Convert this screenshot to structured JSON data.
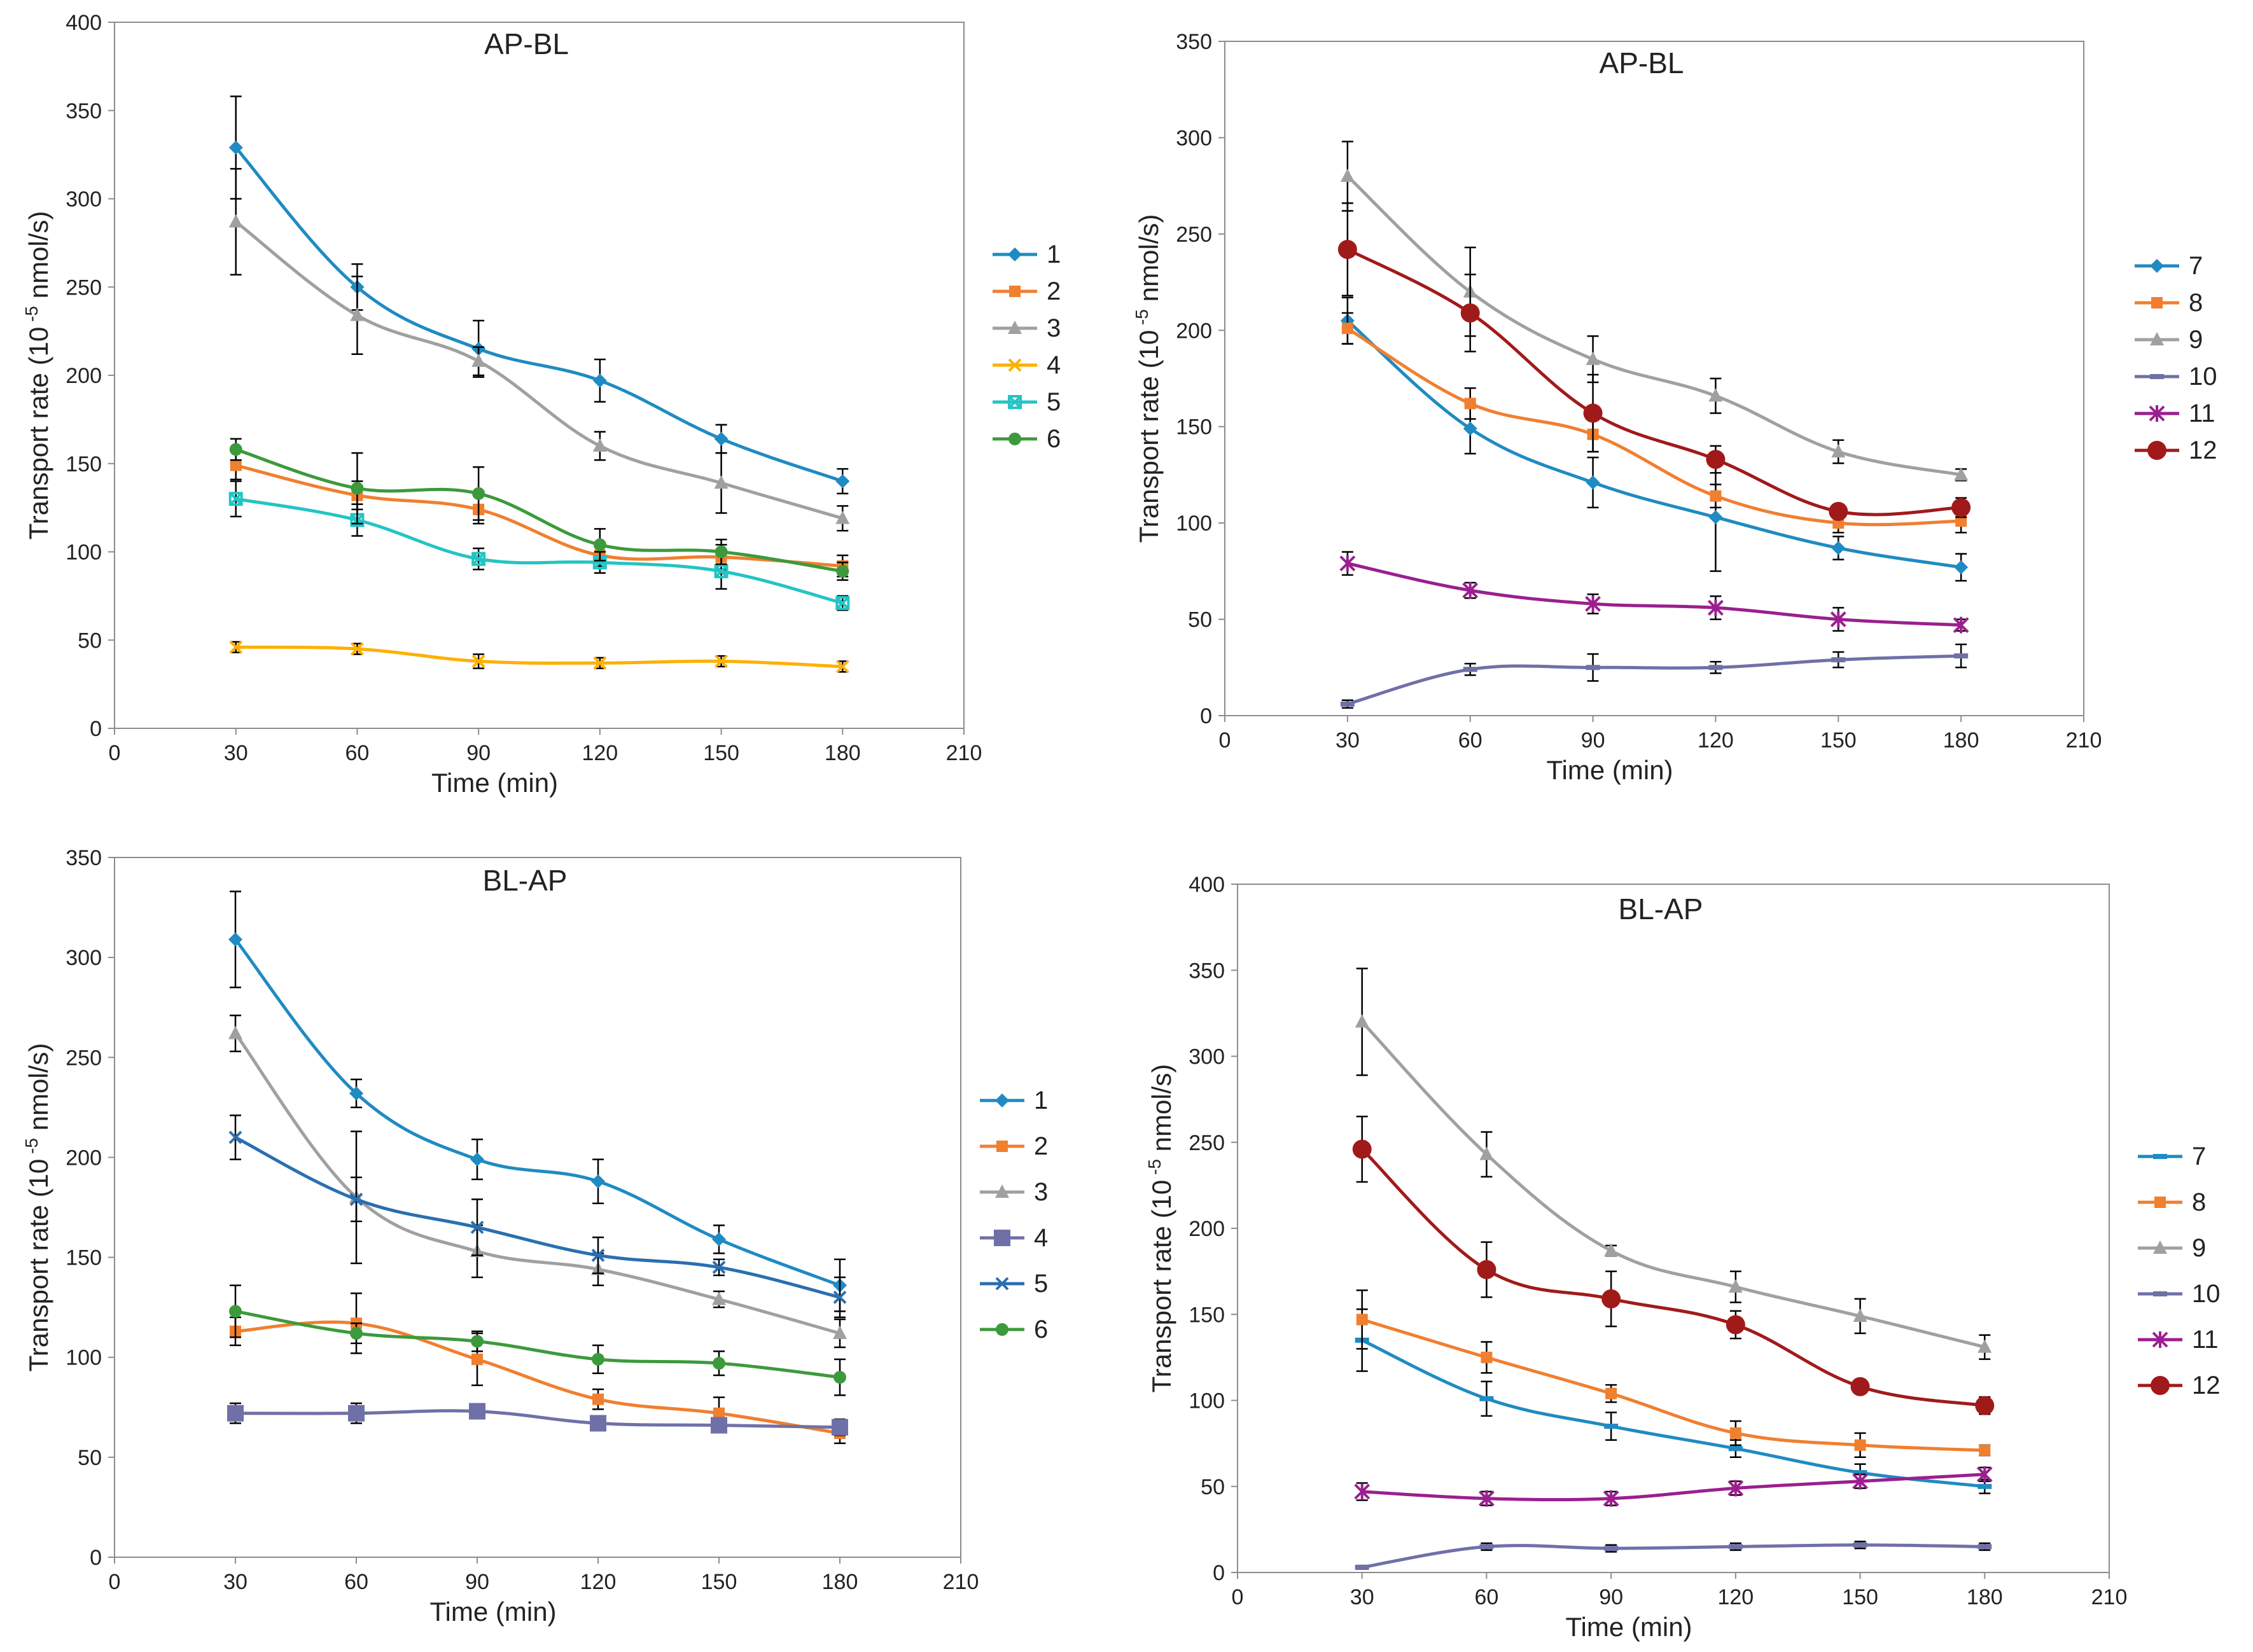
{
  "chart_data": [
    {
      "type": "line",
      "title": "AP-BL",
      "xlabel": "Time (min)",
      "ylabel_prefix": "Transport rate (10",
      "ylabel_exp": "-5",
      "ylabel_suffix": " nmol/s)",
      "xlim": [
        0,
        210
      ],
      "ylim": [
        0,
        400
      ],
      "xticks": [
        0,
        30,
        60,
        90,
        120,
        150,
        180,
        210
      ],
      "yticks": [
        0,
        50,
        100,
        150,
        200,
        250,
        300,
        350,
        400
      ],
      "x": [
        30,
        60,
        90,
        120,
        150,
        180
      ],
      "series": [
        {
          "name": "1",
          "color": "#1F8BC2",
          "marker": "diamond",
          "values": [
            329,
            250,
            215,
            197,
            164,
            140
          ],
          "errors": [
            29,
            13,
            16,
            12,
            8,
            7
          ]
        },
        {
          "name": "2",
          "color": "#F07F2F",
          "marker": "square",
          "values": [
            149,
            132,
            124,
            98,
            97,
            92
          ],
          "errors": [
            8,
            8,
            8,
            6,
            7,
            6
          ]
        },
        {
          "name": "3",
          "color": "#A0A0A0",
          "marker": "triangle",
          "values": [
            287,
            234,
            208,
            160,
            139,
            119
          ],
          "errors": [
            30,
            22,
            8,
            8,
            17,
            7
          ]
        },
        {
          "name": "4",
          "color": "#FFB000",
          "marker": "x",
          "values": [
            46,
            45,
            38,
            37,
            38,
            35
          ],
          "errors": [
            3,
            3,
            4,
            3,
            3,
            3
          ]
        },
        {
          "name": "5",
          "color": "#23C4C4",
          "marker": "squarecross",
          "values": [
            130,
            118,
            96,
            94,
            89,
            71
          ],
          "errors": [
            10,
            9,
            6,
            6,
            10,
            4
          ]
        },
        {
          "name": "6",
          "color": "#3C9A3C",
          "marker": "circle",
          "values": [
            158,
            136,
            133,
            104,
            100,
            89
          ],
          "errors": [
            6,
            20,
            15,
            9,
            7,
            5
          ]
        }
      ]
    },
    {
      "type": "line",
      "title": "AP-BL",
      "xlabel": "Time (min)",
      "ylabel_prefix": "Transport rate (10",
      "ylabel_exp": "-5",
      "ylabel_suffix": " nmol/s)",
      "xlim": [
        0,
        210
      ],
      "ylim": [
        0,
        350
      ],
      "xticks": [
        0,
        30,
        60,
        90,
        120,
        150,
        180,
        210
      ],
      "yticks": [
        0,
        50,
        100,
        150,
        200,
        250,
        300,
        350
      ],
      "x": [
        30,
        60,
        90,
        120,
        150,
        180
      ],
      "series": [
        {
          "name": "7",
          "color": "#1F8BC2",
          "marker": "diamond",
          "values": [
            205,
            149,
            121,
            103,
            87,
            77
          ],
          "errors": [
            12,
            13,
            13,
            28,
            6,
            7
          ]
        },
        {
          "name": "8",
          "color": "#F07F2F",
          "marker": "square",
          "values": [
            201,
            162,
            146,
            114,
            100,
            101
          ],
          "errors": [
            8,
            8,
            9,
            6,
            5,
            6
          ]
        },
        {
          "name": "9",
          "color": "#A0A0A0",
          "marker": "triangle",
          "values": [
            280,
            220,
            185,
            166,
            137,
            125
          ],
          "errors": [
            18,
            23,
            12,
            9,
            6,
            3
          ]
        },
        {
          "name": "10",
          "color": "#7070A8",
          "marker": "dash",
          "values": [
            6,
            24,
            25,
            25,
            29,
            31
          ],
          "errors": [
            2,
            3,
            7,
            3,
            4,
            6
          ]
        },
        {
          "name": "11",
          "color": "#9B1F8F",
          "marker": "star",
          "values": [
            79,
            65,
            58,
            56,
            50,
            47
          ],
          "errors": [
            6,
            4,
            5,
            6,
            6,
            3
          ]
        },
        {
          "name": "12",
          "color": "#A11A1A",
          "marker": "bigcircle",
          "values": [
            242,
            209,
            157,
            133,
            106,
            108
          ],
          "errors": [
            24,
            20,
            20,
            7,
            3,
            5
          ]
        }
      ]
    },
    {
      "type": "line",
      "title": "BL-AP",
      "xlabel": "Time (min)",
      "ylabel_prefix": "Transport rate (10",
      "ylabel_exp": "-5",
      "ylabel_suffix": " nmol/s)",
      "xlim": [
        0,
        210
      ],
      "ylim": [
        0,
        350
      ],
      "xticks": [
        0,
        30,
        60,
        90,
        120,
        150,
        180,
        210
      ],
      "yticks": [
        0,
        50,
        100,
        150,
        200,
        250,
        300,
        350
      ],
      "x": [
        30,
        60,
        90,
        120,
        150,
        180
      ],
      "series": [
        {
          "name": "1",
          "color": "#1F8BC2",
          "marker": "diamond",
          "values": [
            309,
            232,
            199,
            188,
            159,
            136
          ],
          "errors": [
            24,
            7,
            10,
            11,
            7,
            13
          ]
        },
        {
          "name": "2",
          "color": "#F07F2F",
          "marker": "square",
          "values": [
            113,
            117,
            99,
            79,
            72,
            62
          ],
          "errors": [
            7,
            15,
            13,
            5,
            8,
            5
          ]
        },
        {
          "name": "3",
          "color": "#A0A0A0",
          "marker": "triangle",
          "values": [
            262,
            180,
            153,
            144,
            129,
            112
          ],
          "errors": [
            9,
            33,
            13,
            8,
            4,
            7
          ]
        },
        {
          "name": "4",
          "color": "#7070A8",
          "marker": "bigsquare",
          "values": [
            72,
            72,
            73,
            67,
            66,
            65
          ],
          "errors": [
            5,
            5,
            3,
            3,
            3,
            4
          ]
        },
        {
          "name": "5",
          "color": "#2A6FB0",
          "marker": "x",
          "values": [
            210,
            179,
            165,
            151,
            145,
            130
          ],
          "errors": [
            11,
            11,
            14,
            9,
            4,
            10
          ]
        },
        {
          "name": "6",
          "color": "#3C9A3C",
          "marker": "circle",
          "values": [
            123,
            112,
            108,
            99,
            97,
            90
          ],
          "errors": [
            13,
            5,
            5,
            7,
            6,
            9
          ]
        }
      ]
    },
    {
      "type": "line",
      "title": "BL-AP",
      "xlabel": "Time (min)",
      "ylabel_prefix": "Transport rate (10",
      "ylabel_exp": "-5",
      "ylabel_suffix": " nmol/s)",
      "xlim": [
        0,
        210
      ],
      "ylim": [
        0,
        400
      ],
      "xticks": [
        0,
        30,
        60,
        90,
        120,
        150,
        180,
        210
      ],
      "yticks": [
        0,
        50,
        100,
        150,
        200,
        250,
        300,
        350,
        400
      ],
      "x": [
        30,
        60,
        90,
        120,
        150,
        180
      ],
      "series": [
        {
          "name": "7",
          "color": "#1F8BC2",
          "marker": "dash",
          "values": [
            135,
            101,
            85,
            72,
            58,
            50
          ],
          "errors": [
            18,
            10,
            8,
            5,
            5,
            4
          ]
        },
        {
          "name": "8",
          "color": "#F07F2F",
          "marker": "square",
          "values": [
            147,
            125,
            104,
            81,
            74,
            71
          ],
          "errors": [
            17,
            9,
            5,
            7,
            7,
            3
          ]
        },
        {
          "name": "9",
          "color": "#A0A0A0",
          "marker": "triangle",
          "values": [
            320,
            243,
            187,
            166,
            149,
            131
          ],
          "errors": [
            31,
            13,
            3,
            9,
            10,
            7
          ]
        },
        {
          "name": "10",
          "color": "#7070A8",
          "marker": "dash",
          "values": [
            3,
            15,
            14,
            15,
            16,
            15
          ],
          "errors": [
            1,
            2,
            2,
            2,
            2,
            2
          ]
        },
        {
          "name": "11",
          "color": "#9B1F8F",
          "marker": "star",
          "values": [
            47,
            43,
            43,
            49,
            53,
            57
          ],
          "errors": [
            5,
            4,
            4,
            4,
            4,
            4
          ]
        },
        {
          "name": "12",
          "color": "#A11A1A",
          "marker": "bigcircle",
          "values": [
            246,
            176,
            159,
            144,
            108,
            97
          ],
          "errors": [
            19,
            16,
            16,
            8,
            4,
            5
          ]
        }
      ]
    }
  ]
}
